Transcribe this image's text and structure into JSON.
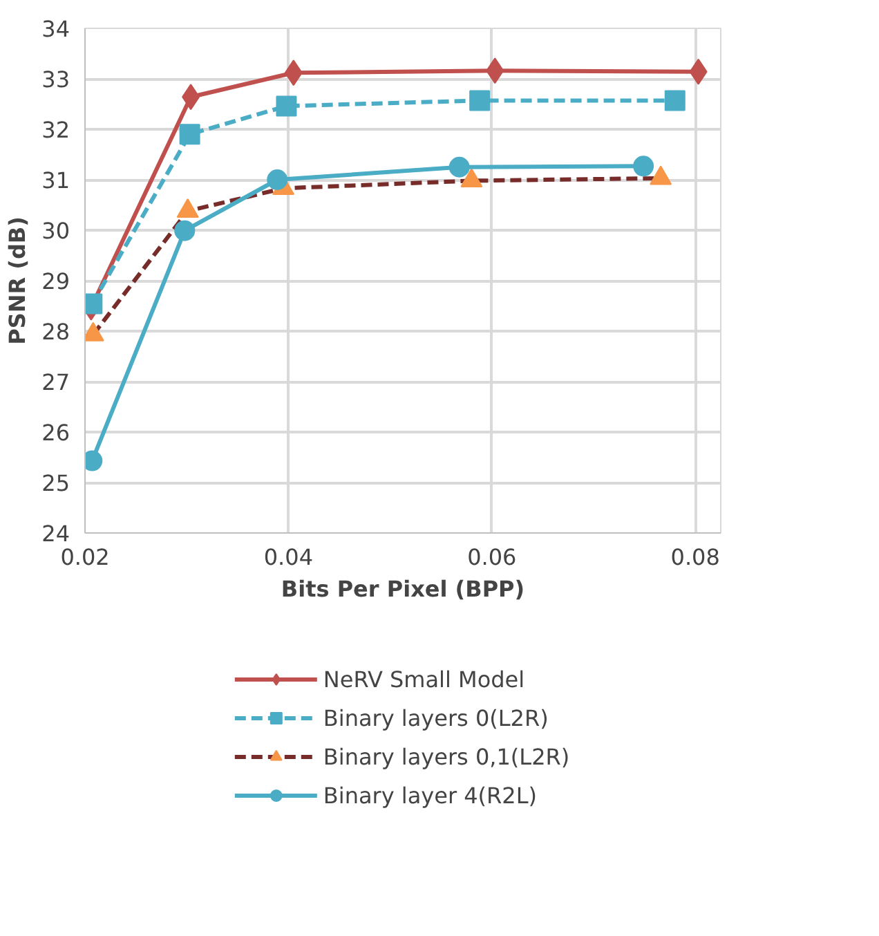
{
  "chart_data": {
    "type": "line",
    "xlabel": "Bits Per Pixel (BPP)",
    "ylabel": "PSNR (dB)",
    "xlim": [
      0.02,
      0.0825
    ],
    "xticks": [
      {
        "value": 0.02,
        "label": "0.02"
      },
      {
        "value": 0.04,
        "label": "0.04"
      },
      {
        "value": 0.06,
        "label": "0.06"
      },
      {
        "value": 0.08,
        "label": "0.08"
      }
    ],
    "ylim": [
      24,
      34
    ],
    "yticks": [
      24,
      25,
      26,
      27,
      28,
      29,
      30,
      31,
      32,
      33,
      34
    ],
    "grid": true,
    "legend": "bottom",
    "series": [
      {
        "name": "NeRV Small Model",
        "color": "#c0504d",
        "marker": "diamond",
        "line_style": "solid",
        "x": [
          0.0206,
          0.0304,
          0.0405,
          0.0603,
          0.0803
        ],
        "values": [
          28.47,
          32.64,
          33.12,
          33.16,
          33.14
        ]
      },
      {
        "name": "Binary layers 0(L2R)",
        "color": "#4bacc6",
        "marker": "square",
        "line_style": "dashed",
        "x": [
          0.0207,
          0.0303,
          0.0398,
          0.0588,
          0.078
        ],
        "values": [
          28.54,
          31.9,
          32.46,
          32.57,
          32.57
        ]
      },
      {
        "name": "Binary layers 0,1(L2R)",
        "color": "#772c2a",
        "colors": [
          "#f79646",
          "#f79646",
          "#f79646",
          "#f79646",
          "#f79646"
        ],
        "marker": "triangle",
        "line_style": "dashed",
        "x": [
          0.0208,
          0.0301,
          0.0395,
          0.058,
          0.0766
        ],
        "values": [
          27.93,
          30.38,
          30.83,
          30.98,
          31.03
        ]
      },
      {
        "name": "Binary layer 4(R2L)",
        "color": "#4bacc6",
        "marker": "circle",
        "line_style": "solid",
        "x": [
          0.0207,
          0.0298,
          0.0389,
          0.0568,
          0.0749
        ],
        "values": [
          25.43,
          29.99,
          31.0,
          31.25,
          31.27
        ]
      }
    ]
  }
}
